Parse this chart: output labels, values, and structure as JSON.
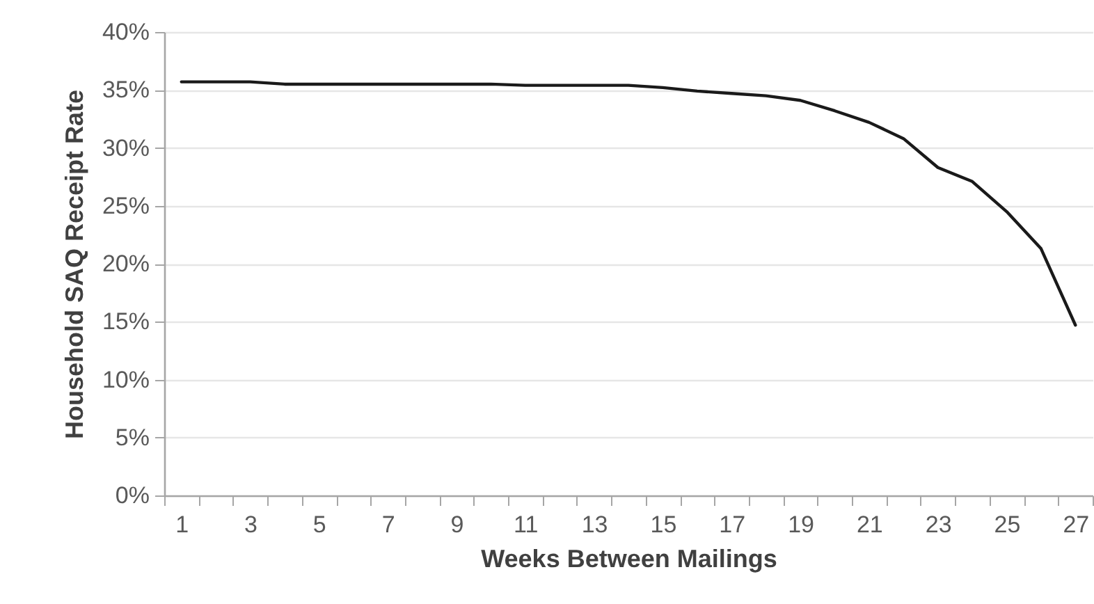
{
  "chart_data": {
    "type": "line",
    "xlabel": "Weeks Between Mailings",
    "ylabel": "Household SAQ Receipt Rate",
    "x": [
      1,
      2,
      3,
      4,
      5,
      6,
      7,
      8,
      9,
      10,
      11,
      12,
      13,
      14,
      15,
      16,
      17,
      18,
      19,
      20,
      21,
      22,
      23,
      24,
      25,
      26,
      27
    ],
    "xlim": [
      0.5,
      27.5
    ],
    "xticks": [
      1,
      3,
      5,
      7,
      9,
      11,
      13,
      15,
      17,
      19,
      21,
      23,
      25,
      27,
      {
        "value": 0.5,
        "label": null
      },
      {
        "value": 1.5,
        "label": null
      },
      {
        "value": 2.5,
        "label": null
      },
      {
        "value": 3.5,
        "label": null
      },
      {
        "value": 4.5,
        "label": null
      },
      {
        "value": 5.5,
        "label": null
      },
      {
        "value": 6.5,
        "label": null
      },
      {
        "value": 7.5,
        "label": null
      },
      {
        "value": 8.5,
        "label": null
      },
      {
        "value": 9.5,
        "label": null
      },
      {
        "value": 10.5,
        "label": null
      },
      {
        "value": 11.5,
        "label": null
      },
      {
        "value": 12.5,
        "label": null
      },
      {
        "value": 13.5,
        "label": null
      },
      {
        "value": 14.5,
        "label": null
      },
      {
        "value": 15.5,
        "label": null
      },
      {
        "value": 16.5,
        "label": null
      },
      {
        "value": 17.5,
        "label": null
      },
      {
        "value": 18.5,
        "label": null
      },
      {
        "value": 19.5,
        "label": null
      },
      {
        "value": 20.5,
        "label": null
      },
      {
        "value": 21.5,
        "label": null
      },
      {
        "value": 22.5,
        "label": null
      },
      {
        "value": 23.5,
        "label": null
      },
      {
        "value": 24.5,
        "label": null
      },
      {
        "value": 25.5,
        "label": null
      },
      {
        "value": 26.5,
        "label": null
      },
      {
        "value": 27.5,
        "label": null
      }
    ],
    "series": [
      {
        "color": "#1a1a1a",
        "values": [
          35.7,
          35.7,
          35.7,
          35.5,
          35.5,
          35.5,
          35.5,
          35.5,
          35.5,
          35.5,
          35.4,
          35.4,
          35.4,
          35.4,
          35.2,
          34.9,
          34.7,
          34.5,
          34.1,
          33.2,
          32.2,
          30.8,
          28.3,
          27.1,
          24.5,
          21.3,
          14.7
        ]
      }
    ],
    "ylim": [
      0,
      40
    ],
    "yticks": [
      {
        "value": 0,
        "label": "0%"
      },
      {
        "value": 5,
        "label": "5%"
      },
      {
        "value": 10,
        "label": "10%"
      },
      {
        "value": 15,
        "label": "15%"
      },
      {
        "value": 20,
        "label": "20%"
      },
      {
        "value": 25,
        "label": "25%"
      },
      {
        "value": 30,
        "label": "30%"
      },
      {
        "value": 35,
        "label": "35%"
      },
      {
        "value": 40,
        "label": "40%"
      }
    ],
    "grid": "y",
    "legend": false,
    "marker": "none",
    "line_style": "solid"
  }
}
